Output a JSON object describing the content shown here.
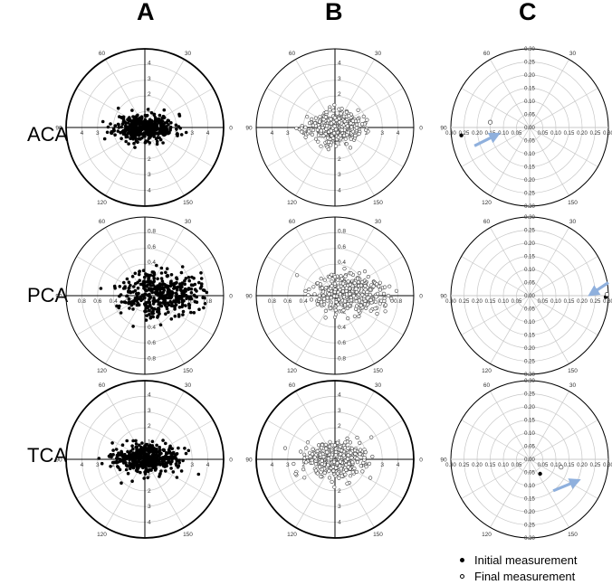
{
  "columns": [
    "A",
    "B",
    "C"
  ],
  "rows": [
    "ACA",
    "PCA",
    "TCA"
  ],
  "legend": {
    "initial": "Initial measurement",
    "final": "Final measurement"
  },
  "colors": {
    "arrow": "#8fb0dd",
    "grid": "#c8c8c8",
    "ink": "#000000"
  },
  "chart_data": [
    {
      "id": "A-ACA",
      "type": "scatter",
      "coordinate": "polar",
      "row": "ACA",
      "column": "A",
      "measurement": "initial",
      "marker": "filled",
      "rmax": 4.5,
      "radial_ticks": [
        "1",
        "2",
        "3",
        "4"
      ],
      "angle_labels": [
        "0",
        "30",
        "60",
        "90",
        "120",
        "150"
      ],
      "n_points": 420,
      "spread_x": 0.85,
      "spread_y": 0.38,
      "seed": 11,
      "rim": "thick"
    },
    {
      "id": "B-ACA",
      "type": "scatter",
      "coordinate": "polar",
      "row": "ACA",
      "column": "B",
      "measurement": "final",
      "marker": "open",
      "rmax": 4.5,
      "radial_ticks": [
        "1",
        "2",
        "3",
        "4"
      ],
      "angle_labels": [
        "0",
        "30",
        "60",
        "90",
        "120",
        "150"
      ],
      "n_points": 380,
      "spread_x": 0.75,
      "spread_y": 0.42,
      "seed": 23,
      "rim": "thin"
    },
    {
      "id": "C-ACA",
      "type": "scatter",
      "coordinate": "polar",
      "row": "ACA",
      "column": "C",
      "rmax": 0.3,
      "radial_ticks": [
        "0.00",
        "0.05",
        "0.10",
        "0.15",
        "0.20",
        "0.25",
        "0.30"
      ],
      "angle_labels": [
        "0",
        "30",
        "60",
        "90",
        "120",
        "150"
      ],
      "initial_point": [
        -0.26,
        -0.03
      ],
      "final_point": [
        -0.15,
        0.02
      ],
      "arrow": {
        "from": [
          -0.21,
          -0.07
        ],
        "to": [
          -0.13,
          -0.03
        ]
      },
      "rim": "thin"
    },
    {
      "id": "A-PCA",
      "type": "scatter",
      "coordinate": "polar",
      "row": "PCA",
      "column": "A",
      "measurement": "initial",
      "marker": "filled",
      "rmax": 0.9,
      "radial_ticks": [
        "0.2",
        "0.4",
        "0.6",
        "0.8"
      ],
      "angle_labels": [
        "0",
        "30",
        "60",
        "90",
        "120",
        "150"
      ],
      "n_points": 400,
      "spread_x": 0.22,
      "spread_y": 0.13,
      "shift_x": 0.18,
      "shift_y": 0.03,
      "seed": 37,
      "rim": "thin"
    },
    {
      "id": "B-PCA",
      "type": "scatter",
      "coordinate": "polar",
      "row": "PCA",
      "column": "B",
      "measurement": "final",
      "marker": "open",
      "rmax": 0.9,
      "radial_ticks": [
        "0.2",
        "0.4",
        "0.6",
        "0.8"
      ],
      "angle_labels": [
        "0",
        "30",
        "60",
        "90",
        "120",
        "150"
      ],
      "n_points": 380,
      "spread_x": 0.2,
      "spread_y": 0.11,
      "shift_x": 0.17,
      "shift_y": 0.02,
      "seed": 51,
      "rim": "thin"
    },
    {
      "id": "C-PCA",
      "type": "scatter",
      "coordinate": "polar",
      "row": "PCA",
      "column": "C",
      "rmax": 0.3,
      "radial_ticks": [
        "0.00",
        "0.05",
        "0.10",
        "0.15",
        "0.20",
        "0.25",
        "0.30"
      ],
      "angle_labels": [
        "0",
        "30",
        "60",
        "90",
        "120",
        "150"
      ],
      "initial_point": [
        0.29,
        -0.005
      ],
      "final_point": [
        0.295,
        0.005
      ],
      "arrow": {
        "from": [
          0.3,
          0.05
        ],
        "to": [
          0.24,
          0.01
        ]
      },
      "rim": "thin"
    },
    {
      "id": "A-TCA",
      "type": "scatter",
      "coordinate": "polar",
      "row": "TCA",
      "column": "A",
      "measurement": "initial",
      "marker": "filled",
      "rmax": 4.5,
      "radial_ticks": [
        "1",
        "2",
        "3",
        "4"
      ],
      "angle_labels": [
        "0",
        "30",
        "60",
        "90",
        "120",
        "150"
      ],
      "n_points": 420,
      "spread_x": 0.9,
      "spread_y": 0.4,
      "seed": 67,
      "rim": "thick"
    },
    {
      "id": "B-TCA",
      "type": "scatter",
      "coordinate": "polar",
      "row": "TCA",
      "column": "B",
      "measurement": "final",
      "marker": "open",
      "rmax": 4.5,
      "radial_ticks": [
        "1",
        "2",
        "3",
        "4"
      ],
      "angle_labels": [
        "0",
        "30",
        "60",
        "90",
        "120",
        "150"
      ],
      "n_points": 380,
      "spread_x": 0.85,
      "spread_y": 0.5,
      "seed": 83,
      "rim": "thick"
    },
    {
      "id": "C-TCA",
      "type": "scatter",
      "coordinate": "polar",
      "row": "TCA",
      "column": "C",
      "rmax": 0.3,
      "radial_ticks": [
        "0.00",
        "0.05",
        "0.10",
        "0.15",
        "0.20",
        "0.25",
        "0.30"
      ],
      "angle_labels": [
        "0",
        "30",
        "60",
        "90",
        "120",
        "150"
      ],
      "initial_point": [
        0.04,
        -0.055
      ],
      "final_point": [
        0.12,
        -0.03
      ],
      "arrow": {
        "from": [
          0.09,
          -0.12
        ],
        "to": [
          0.175,
          -0.085
        ]
      },
      "rim": "thin"
    }
  ]
}
